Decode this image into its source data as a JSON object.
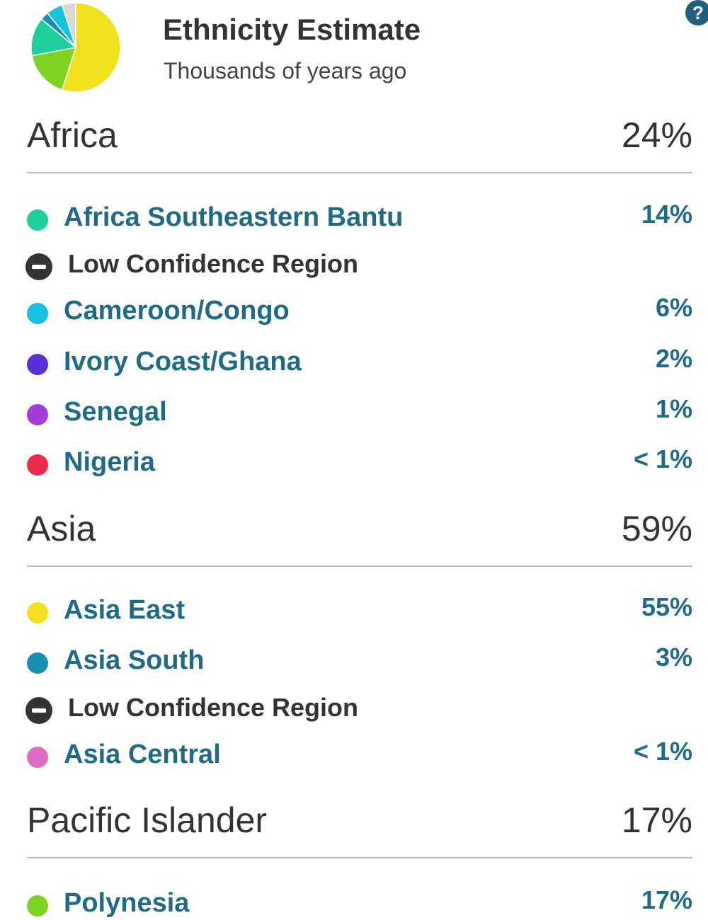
{
  "header": {
    "title": "Ethnicity Estimate",
    "subtitle": "Thousands of years ago",
    "help_glyph": "?",
    "pie_icon": "ethnicity-pie-chart",
    "pie_slices": [
      {
        "color": "#f0e01e",
        "percent": 55
      },
      {
        "color": "#7ed321",
        "percent": 17
      },
      {
        "color": "#1fcf9b",
        "percent": 14
      },
      {
        "color": "#1a8fb0",
        "percent": 3
      },
      {
        "color": "#17c0dc",
        "percent": 6
      },
      {
        "color": "#d9d9d9",
        "percent": 5
      }
    ]
  },
  "groups": [
    {
      "name": "Africa",
      "percent": "24%",
      "items": [
        {
          "type": "region",
          "name": "Africa Southeastern Bantu",
          "percent": "14%",
          "color": "#1fcf9b"
        },
        {
          "type": "low_confidence",
          "label": "Low Confidence Region",
          "icon": "minus-circle-icon"
        },
        {
          "type": "region",
          "name": "Cameroon/Congo",
          "percent": "6%",
          "color": "#17c0dc"
        },
        {
          "type": "region",
          "name": "Ivory Coast/Ghana",
          "percent": "2%",
          "color": "#5a2fd6"
        },
        {
          "type": "region",
          "name": "Senegal",
          "percent": "1%",
          "color": "#a03ddb"
        },
        {
          "type": "region",
          "name": "Nigeria",
          "percent": "< 1%",
          "color": "#ea2c4a"
        }
      ]
    },
    {
      "name": "Asia",
      "percent": "59%",
      "items": [
        {
          "type": "region",
          "name": "Asia East",
          "percent": "55%",
          "color": "#f5e020"
        },
        {
          "type": "region",
          "name": "Asia South",
          "percent": "3%",
          "color": "#1a8fb0"
        },
        {
          "type": "low_confidence",
          "label": "Low Confidence Region",
          "icon": "minus-circle-icon"
        },
        {
          "type": "region",
          "name": "Asia Central",
          "percent": "< 1%",
          "color": "#e06bc4"
        }
      ]
    },
    {
      "name": "Pacific Islander",
      "percent": "17%",
      "items": [
        {
          "type": "region",
          "name": "Polynesia",
          "percent": "17%",
          "color": "#7ed321"
        }
      ]
    }
  ]
}
